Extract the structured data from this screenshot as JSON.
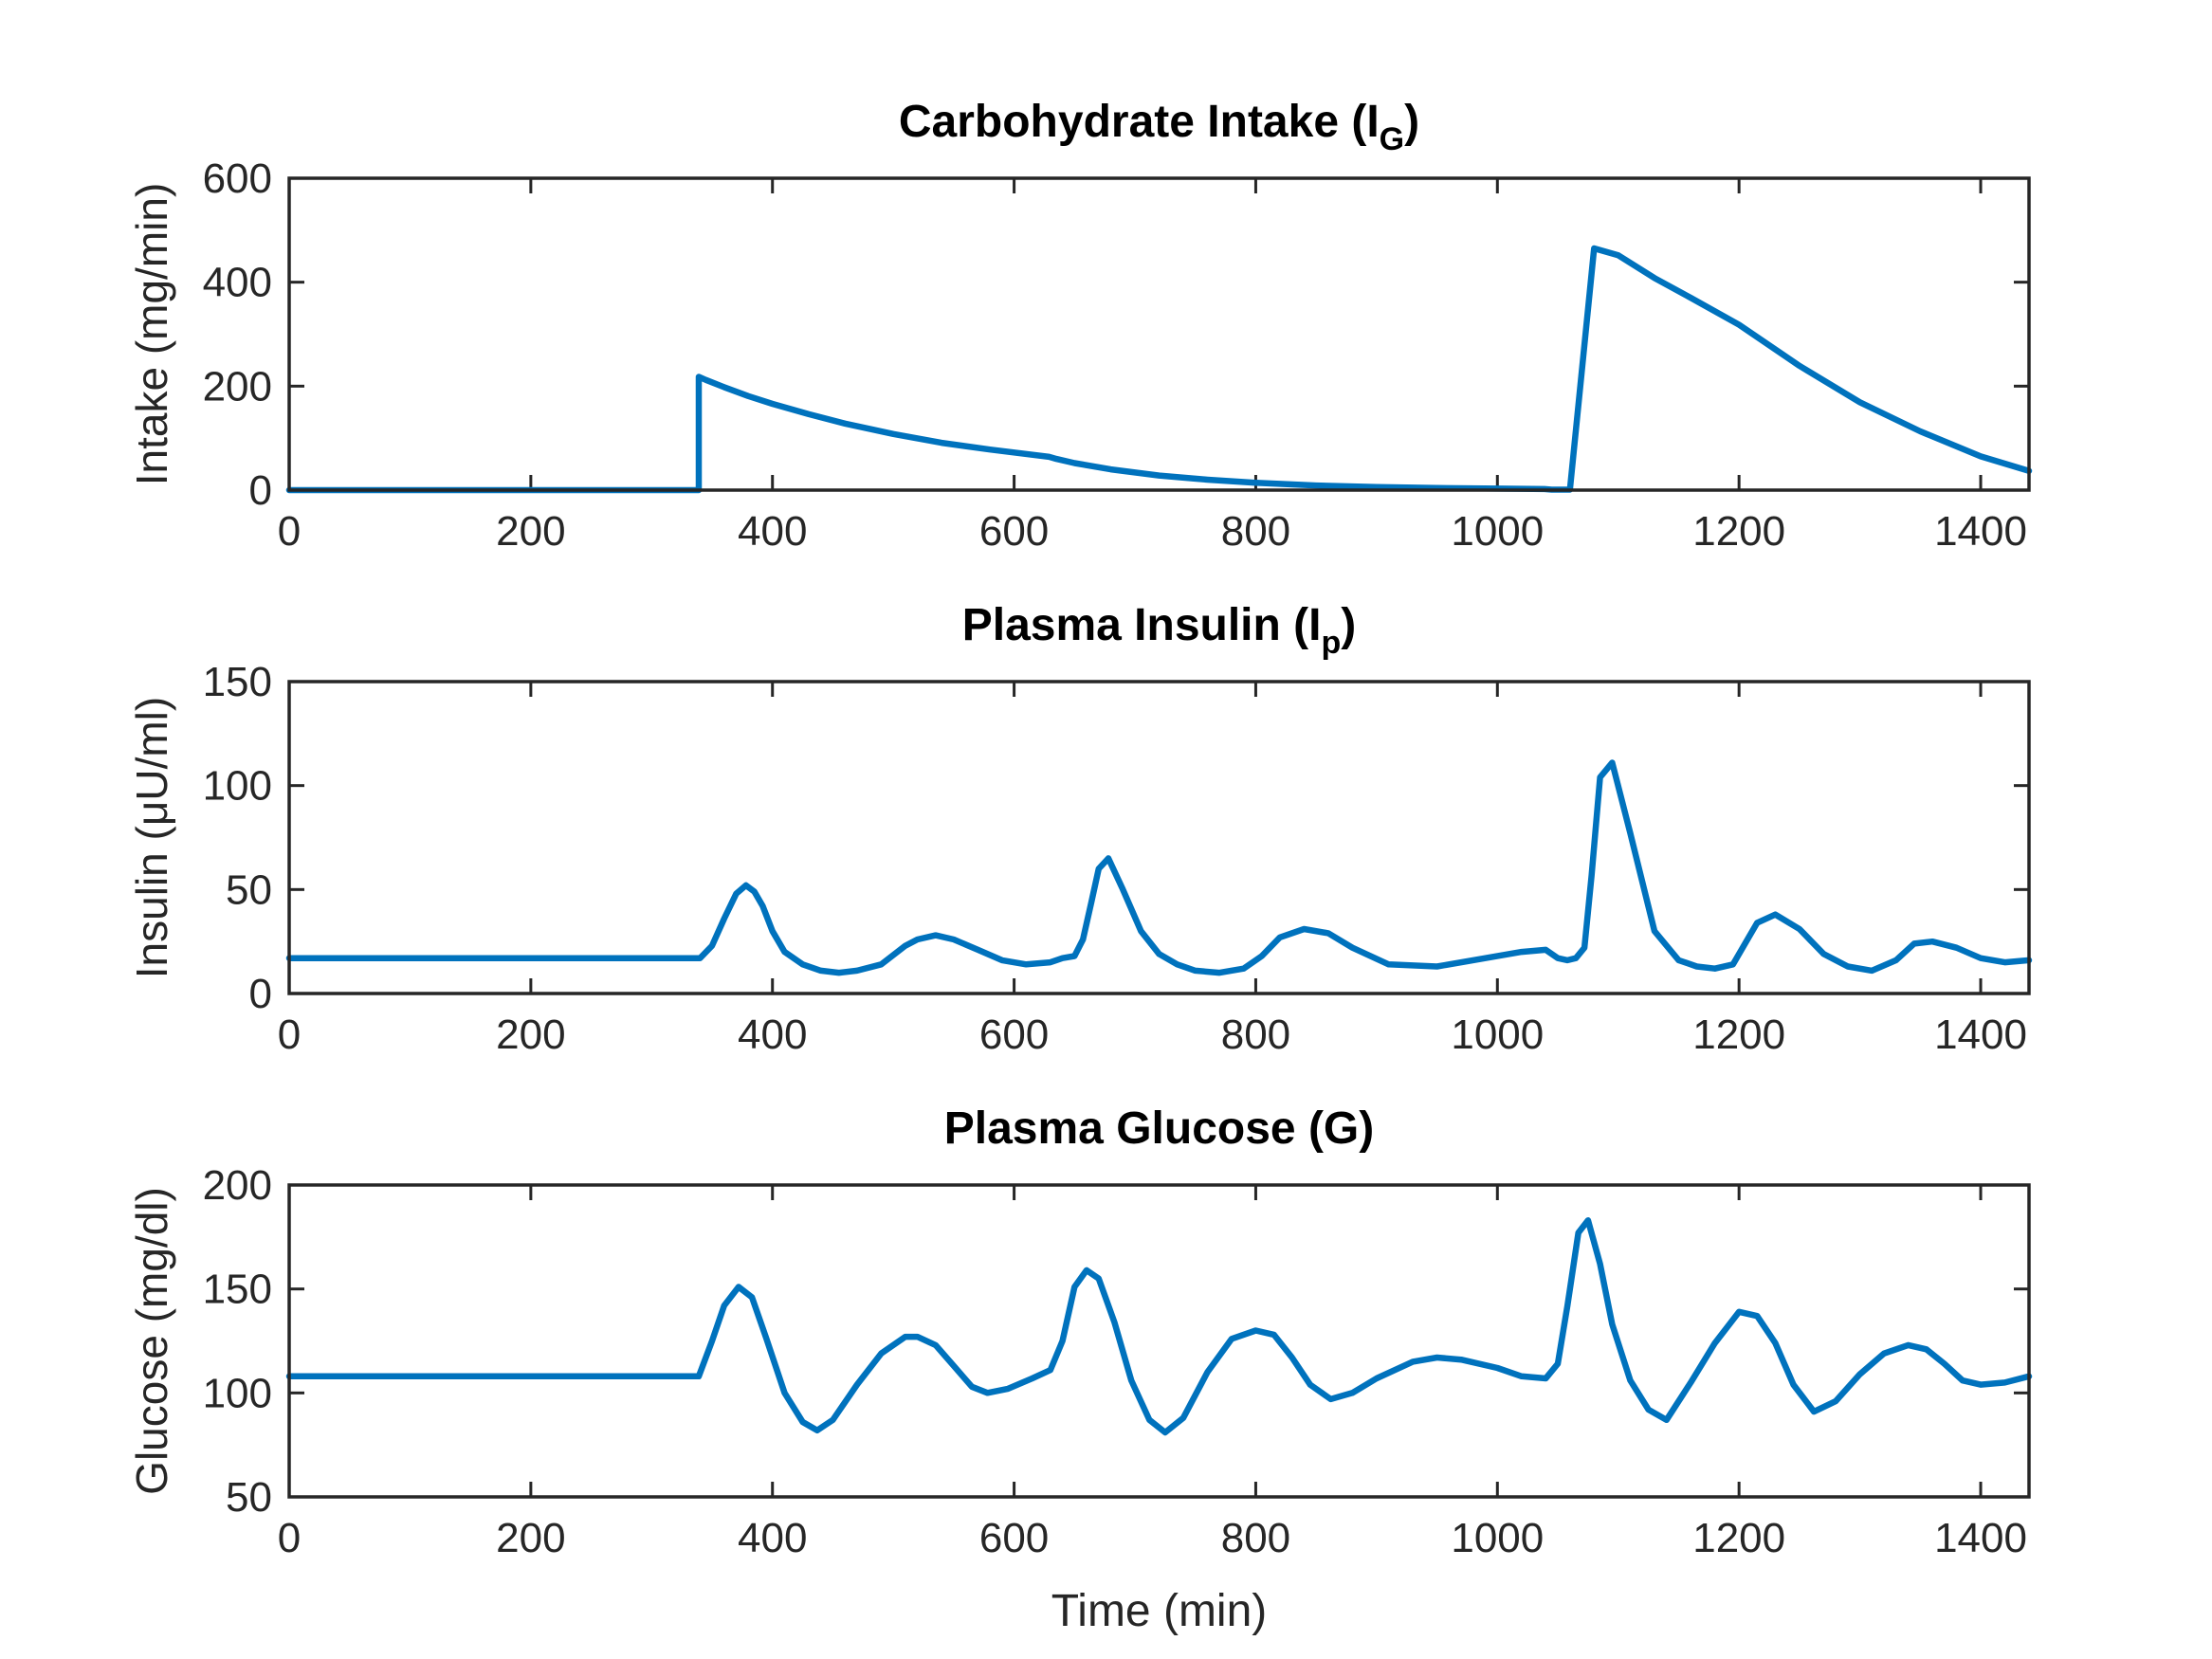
{
  "colors": {
    "series": "#0072BD",
    "axis": "#262626",
    "background": "#ffffff"
  },
  "chart_data": [
    {
      "type": "line",
      "title_main": "Carbohydrate Intake (I",
      "title_sub": "G",
      "title_end": ")",
      "xlabel": "",
      "ylabel": "Intake (mg/min)",
      "xlim": [
        0,
        1440
      ],
      "ylim": [
        0,
        600
      ],
      "xticks": [
        0,
        200,
        400,
        600,
        800,
        1000,
        1200,
        1400
      ],
      "yticks": [
        0,
        200,
        400,
        600
      ],
      "series": [
        {
          "name": "Intake",
          "x": [
            0,
            339,
            339,
            345,
            360,
            380,
            400,
            430,
            460,
            500,
            540,
            580,
            629,
            629,
            635,
            650,
            680,
            720,
            760,
            800,
            850,
            900,
            950,
            1000,
            1039,
            1039,
            1045,
            1060,
            1080,
            1100,
            1130,
            1160,
            1200,
            1250,
            1300,
            1350,
            1400,
            1440
          ],
          "y": [
            0,
            0,
            218,
            212,
            198,
            181,
            166,
            146,
            128,
            108,
            91,
            78,
            64,
            64,
            60,
            52,
            40,
            28,
            20,
            14,
            9,
            6,
            4,
            3,
            2,
            2,
            1,
            1,
            465,
            452,
            408,
            370,
            318,
            239,
            169,
            113,
            65,
            37
          ]
        }
      ]
    },
    {
      "type": "line",
      "title_main": "Plasma Insulin (I",
      "title_sub": "p",
      "title_end": ")",
      "xlabel": "",
      "ylabel": "Insulin (μU/ml)",
      "xlim": [
        0,
        1440
      ],
      "ylim": [
        0,
        150
      ],
      "xticks": [
        0,
        200,
        400,
        600,
        800,
        1000,
        1200,
        1400
      ],
      "yticks": [
        0,
        50,
        100,
        150
      ],
      "series": [
        {
          "name": "Insulin",
          "x": [
            0,
            100,
            200,
            300,
            340,
            350,
            360,
            370,
            378,
            385,
            392,
            400,
            410,
            425,
            440,
            455,
            470,
            490,
            510,
            520,
            535,
            550,
            570,
            590,
            610,
            630,
            640,
            650,
            657,
            664,
            670,
            678,
            690,
            705,
            720,
            735,
            750,
            770,
            790,
            805,
            820,
            840,
            860,
            880,
            910,
            950,
            990,
            1020,
            1040,
            1050,
            1058,
            1065,
            1072,
            1078,
            1085,
            1095,
            1110,
            1130,
            1150,
            1165,
            1180,
            1195,
            1205,
            1215,
            1230,
            1250,
            1270,
            1290,
            1310,
            1330,
            1345,
            1360,
            1380,
            1400,
            1420,
            1440
          ],
          "y": [
            17,
            17,
            17,
            17,
            17,
            23,
            36,
            48,
            52,
            49,
            42,
            30,
            20,
            14,
            11,
            10,
            11,
            14,
            23,
            26,
            28,
            26,
            21,
            16,
            14,
            15,
            17,
            18,
            26,
            44,
            60,
            65,
            50,
            30,
            19,
            14,
            11,
            10,
            12,
            18,
            27,
            31,
            29,
            22,
            14,
            13,
            17,
            20,
            21,
            17,
            16,
            17,
            22,
            57,
            104,
            111,
            77,
            30,
            16,
            13,
            12,
            14,
            24,
            34,
            38,
            31,
            19,
            13,
            11,
            16,
            24,
            25,
            22,
            17,
            15,
            16
          ]
        }
      ]
    },
    {
      "type": "line",
      "title_main": "Plasma Glucose (G)",
      "title_sub": "",
      "title_end": "",
      "xlabel": "Time (min)",
      "ylabel": "Glucose (mg/dl)",
      "xlim": [
        0,
        1440
      ],
      "ylim": [
        50,
        200
      ],
      "xticks": [
        0,
        200,
        400,
        600,
        800,
        1000,
        1200,
        1400
      ],
      "yticks": [
        50,
        100,
        150,
        200
      ],
      "series": [
        {
          "name": "Glucose",
          "x": [
            0,
            100,
            200,
            300,
            339,
            350,
            360,
            372,
            383,
            395,
            410,
            425,
            437,
            450,
            470,
            490,
            510,
            520,
            535,
            550,
            565,
            578,
            595,
            615,
            630,
            640,
            650,
            660,
            670,
            683,
            697,
            712,
            725,
            740,
            760,
            780,
            800,
            815,
            830,
            845,
            862,
            880,
            900,
            930,
            950,
            970,
            1000,
            1020,
            1040,
            1050,
            1058,
            1067,
            1075,
            1085,
            1095,
            1110,
            1125,
            1140,
            1160,
            1180,
            1200,
            1215,
            1230,
            1245,
            1262,
            1280,
            1300,
            1320,
            1340,
            1355,
            1370,
            1385,
            1400,
            1420,
            1440
          ],
          "y": [
            108,
            108,
            108,
            108,
            108,
            125,
            142,
            151,
            146,
            126,
            100,
            86,
            82,
            87,
            104,
            119,
            127,
            127,
            123,
            113,
            103,
            100,
            102,
            107,
            111,
            125,
            151,
            159,
            155,
            134,
            106,
            87,
            81,
            88,
            110,
            126,
            130,
            128,
            117,
            104,
            97,
            100,
            107,
            115,
            117,
            116,
            112,
            108,
            107,
            114,
            142,
            177,
            183,
            162,
            133,
            106,
            92,
            87,
            105,
            124,
            139,
            137,
            124,
            104,
            91,
            96,
            109,
            119,
            123,
            121,
            114,
            106,
            104,
            105,
            108
          ]
        }
      ]
    }
  ]
}
